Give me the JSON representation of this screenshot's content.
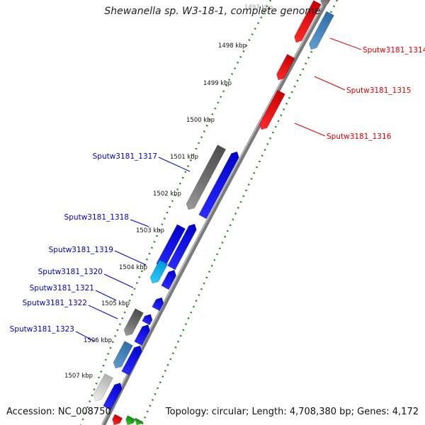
{
  "title": "Shewanella sp. W3-18-1, complete genome",
  "footer": {
    "accession": "Accession: NC_008750",
    "summary": "Topology: circular; Length: 4,708,380 bp; Genes: 4,172"
  },
  "colors": {
    "forward_strand": "#0000ee",
    "reverse_strand": "#ee0000",
    "forward_label": "#0000cc",
    "reverse_label": "#dd0000",
    "kbp_ticks": "#228822",
    "backbone": "#7a7a7a"
  },
  "kbp_ticks": [
    {
      "label": "1497 kbp"
    },
    {
      "label": "1498 kbp"
    },
    {
      "label": "1499 kbp"
    },
    {
      "label": "1500 kbp"
    },
    {
      "label": "1501 kbp"
    },
    {
      "label": "1502 kbp"
    },
    {
      "label": "1503 kbp"
    },
    {
      "label": "1504 kbp"
    },
    {
      "label": "1505 kbp"
    },
    {
      "label": "1506 kbp"
    },
    {
      "label": "1507 kbp"
    }
  ],
  "genes": [
    {
      "label": "Sputw3181_1314",
      "strand": "reverse"
    },
    {
      "label": "Sputw3181_1315",
      "strand": "reverse"
    },
    {
      "label": "Sputw3181_1316",
      "strand": "reverse"
    },
    {
      "label": "Sputw3181_1317",
      "strand": "forward"
    },
    {
      "label": "Sputw3181_1318",
      "strand": "forward"
    },
    {
      "label": "Sputw3181_1319",
      "strand": "forward"
    },
    {
      "label": "Sputw3181_1320",
      "strand": "forward"
    },
    {
      "label": "Sputw3181_1321",
      "strand": "forward"
    },
    {
      "label": "Sputw3181_1322",
      "strand": "forward"
    },
    {
      "label": "Sputw3181_1323",
      "strand": "forward"
    }
  ]
}
